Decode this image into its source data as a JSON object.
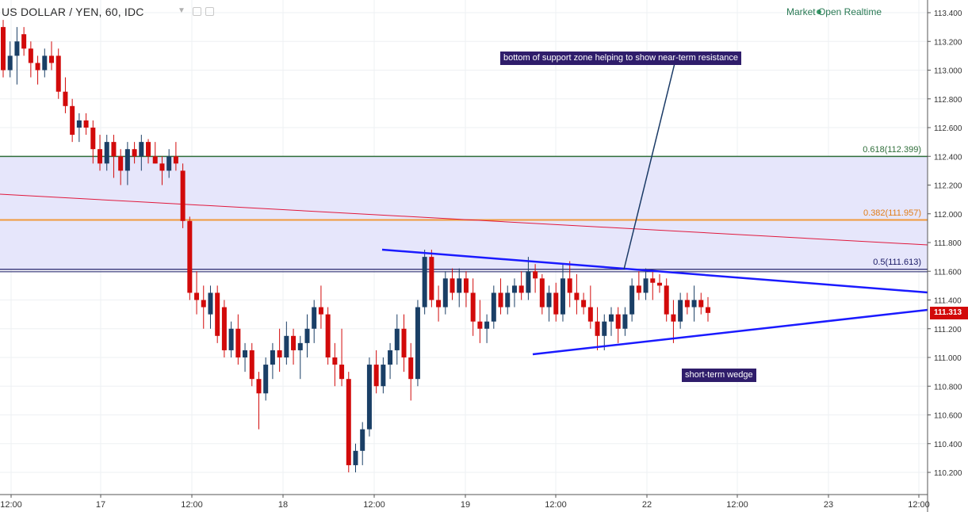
{
  "header": {
    "symbol": "US DOLLAR / YEN, 60, IDC",
    "status": "Market Open Realtime"
  },
  "colors": {
    "up": "#1a3f66",
    "down": "#d20a0a",
    "zone": "#e6e6fb",
    "fib618": "#2f6e3a",
    "fib382": "#f09a3c",
    "fib5": "#1a1a66",
    "trend": "#e0193d",
    "wedge": "#1a1aff",
    "arrow": "#1a3a66"
  },
  "annotations": {
    "resistance": "bottom of support zone helping to show near-term resistance",
    "wedge": "short-term wedge"
  },
  "fib_labels": {
    "f618": "0.618(112.399)",
    "f382": "0.382(111.957)",
    "f5": "0.5(111.613)"
  },
  "last_price": "111.313",
  "chart_data": {
    "type": "candlestick",
    "price_axis": {
      "min": 110.1,
      "max": 113.5,
      "ticks": [
        "113.400",
        "113.200",
        "113.000",
        "112.800",
        "112.600",
        "112.400",
        "112.200",
        "112.000",
        "111.800",
        "111.600",
        "111.400",
        "111.200",
        "111.000",
        "110.800",
        "110.600",
        "110.400",
        "110.200"
      ]
    },
    "time_axis": {
      "labels": [
        "12:00",
        "17",
        "12:00",
        "18",
        "12:00",
        "19",
        "12:00",
        "22",
        "12:00",
        "23",
        "12:00"
      ]
    },
    "levels": {
      "fib_0618": 112.399,
      "fib_0382": 111.957,
      "fib_05": 111.613
    },
    "candles": [
      [
        113.3,
        113.35,
        112.95,
        113.0
      ],
      [
        113.0,
        113.2,
        112.95,
        113.1
      ],
      [
        113.1,
        113.3,
        112.9,
        113.2
      ],
      [
        113.25,
        113.3,
        113.1,
        113.15
      ],
      [
        113.15,
        113.2,
        112.95,
        113.05
      ],
      [
        113.05,
        113.1,
        112.9,
        113.0
      ],
      [
        113.0,
        113.15,
        112.95,
        113.1
      ],
      [
        113.1,
        113.2,
        113.0,
        113.05
      ],
      [
        113.1,
        113.15,
        112.8,
        112.85
      ],
      [
        112.85,
        112.95,
        112.7,
        112.75
      ],
      [
        112.75,
        112.8,
        112.5,
        112.55
      ],
      [
        112.6,
        112.7,
        112.5,
        112.65
      ],
      [
        112.65,
        112.7,
        112.55,
        112.6
      ],
      [
        112.6,
        112.65,
        112.35,
        112.45
      ],
      [
        112.45,
        112.55,
        112.3,
        112.35
      ],
      [
        112.35,
        112.55,
        112.3,
        112.5
      ],
      [
        112.5,
        112.55,
        112.25,
        112.4
      ],
      [
        112.4,
        112.45,
        112.2,
        112.3
      ],
      [
        112.3,
        112.5,
        112.2,
        112.45
      ],
      [
        112.45,
        112.5,
        112.35,
        112.4
      ],
      [
        112.4,
        112.55,
        112.3,
        112.5
      ],
      [
        112.5,
        112.52,
        112.35,
        112.4
      ],
      [
        112.4,
        112.5,
        112.35,
        112.35
      ],
      [
        112.35,
        112.4,
        112.2,
        112.3
      ],
      [
        112.3,
        112.45,
        112.25,
        112.4
      ],
      [
        112.4,
        112.5,
        112.3,
        112.35
      ],
      [
        112.3,
        112.35,
        111.9,
        111.95
      ],
      [
        111.95,
        111.98,
        111.4,
        111.45
      ],
      [
        111.45,
        111.6,
        111.3,
        111.4
      ],
      [
        111.4,
        111.5,
        111.2,
        111.35
      ],
      [
        111.3,
        111.5,
        111.2,
        111.45
      ],
      [
        111.45,
        111.5,
        111.1,
        111.15
      ],
      [
        111.35,
        111.4,
        111.0,
        111.05
      ],
      [
        111.05,
        111.25,
        111.0,
        111.2
      ],
      [
        111.2,
        111.3,
        110.95,
        111.0
      ],
      [
        111.0,
        111.1,
        110.9,
        111.05
      ],
      [
        111.05,
        111.1,
        110.8,
        110.85
      ],
      [
        110.85,
        110.9,
        110.5,
        110.75
      ],
      [
        110.75,
        111.0,
        110.7,
        110.95
      ],
      [
        110.95,
        111.1,
        110.85,
        111.05
      ],
      [
        111.05,
        111.2,
        110.9,
        111.0
      ],
      [
        111.0,
        111.25,
        110.95,
        111.15
      ],
      [
        111.15,
        111.2,
        110.95,
        111.05
      ],
      [
        111.05,
        111.15,
        110.85,
        111.1
      ],
      [
        111.1,
        111.3,
        111.0,
        111.2
      ],
      [
        111.2,
        111.4,
        111.1,
        111.35
      ],
      [
        111.35,
        111.5,
        111.2,
        111.3
      ],
      [
        111.3,
        111.35,
        110.95,
        111.0
      ],
      [
        111.0,
        111.1,
        110.8,
        110.95
      ],
      [
        110.95,
        111.2,
        110.8,
        110.85
      ],
      [
        110.85,
        110.9,
        110.2,
        110.25
      ],
      [
        110.25,
        110.4,
        110.2,
        110.35
      ],
      [
        110.35,
        110.55,
        110.25,
        110.5
      ],
      [
        110.5,
        111.0,
        110.45,
        110.95
      ],
      [
        110.95,
        111.05,
        110.75,
        110.8
      ],
      [
        110.8,
        111.0,
        110.75,
        110.95
      ],
      [
        110.95,
        111.1,
        110.85,
        111.05
      ],
      [
        111.05,
        111.3,
        110.95,
        111.2
      ],
      [
        111.2,
        111.3,
        110.9,
        111.0
      ],
      [
        111.0,
        111.1,
        110.7,
        110.85
      ],
      [
        110.85,
        111.4,
        110.8,
        111.35
      ],
      [
        111.35,
        111.75,
        111.3,
        111.7
      ],
      [
        111.7,
        111.75,
        111.35,
        111.4
      ],
      [
        111.4,
        111.5,
        111.25,
        111.35
      ],
      [
        111.35,
        111.6,
        111.3,
        111.55
      ],
      [
        111.55,
        111.62,
        111.4,
        111.45
      ],
      [
        111.45,
        111.62,
        111.35,
        111.55
      ],
      [
        111.55,
        111.6,
        111.35,
        111.45
      ],
      [
        111.45,
        111.55,
        111.15,
        111.25
      ],
      [
        111.25,
        111.4,
        111.1,
        111.2
      ],
      [
        111.2,
        111.3,
        111.1,
        111.25
      ],
      [
        111.25,
        111.5,
        111.2,
        111.45
      ],
      [
        111.45,
        111.55,
        111.3,
        111.35
      ],
      [
        111.35,
        111.5,
        111.3,
        111.45
      ],
      [
        111.45,
        111.55,
        111.35,
        111.5
      ],
      [
        111.5,
        111.6,
        111.4,
        111.45
      ],
      [
        111.45,
        111.7,
        111.4,
        111.6
      ],
      [
        111.6,
        111.65,
        111.45,
        111.55
      ],
      [
        111.55,
        111.58,
        111.3,
        111.35
      ],
      [
        111.35,
        111.5,
        111.25,
        111.45
      ],
      [
        111.45,
        111.52,
        111.25,
        111.3
      ],
      [
        111.3,
        111.65,
        111.25,
        111.55
      ],
      [
        111.55,
        111.67,
        111.35,
        111.45
      ],
      [
        111.45,
        111.58,
        111.3,
        111.4
      ],
      [
        111.4,
        111.45,
        111.3,
        111.35
      ],
      [
        111.35,
        111.5,
        111.2,
        111.25
      ],
      [
        111.25,
        111.35,
        111.05,
        111.15
      ],
      [
        111.15,
        111.3,
        111.05,
        111.25
      ],
      [
        111.25,
        111.35,
        111.15,
        111.3
      ],
      [
        111.3,
        111.35,
        111.1,
        111.2
      ],
      [
        111.2,
        111.35,
        111.15,
        111.3
      ],
      [
        111.3,
        111.55,
        111.25,
        111.5
      ],
      [
        111.5,
        111.6,
        111.4,
        111.45
      ],
      [
        111.45,
        111.62,
        111.4,
        111.55
      ],
      [
        111.55,
        111.6,
        111.4,
        111.52
      ],
      [
        111.52,
        111.58,
        111.45,
        111.5
      ],
      [
        111.5,
        111.55,
        111.25,
        111.3
      ],
      [
        111.3,
        111.4,
        111.1,
        111.25
      ],
      [
        111.25,
        111.45,
        111.2,
        111.4
      ],
      [
        111.4,
        111.45,
        111.3,
        111.35
      ],
      [
        111.35,
        111.5,
        111.25,
        111.4
      ],
      [
        111.4,
        111.45,
        111.3,
        111.35
      ],
      [
        111.35,
        111.42,
        111.25,
        111.31
      ]
    ]
  }
}
